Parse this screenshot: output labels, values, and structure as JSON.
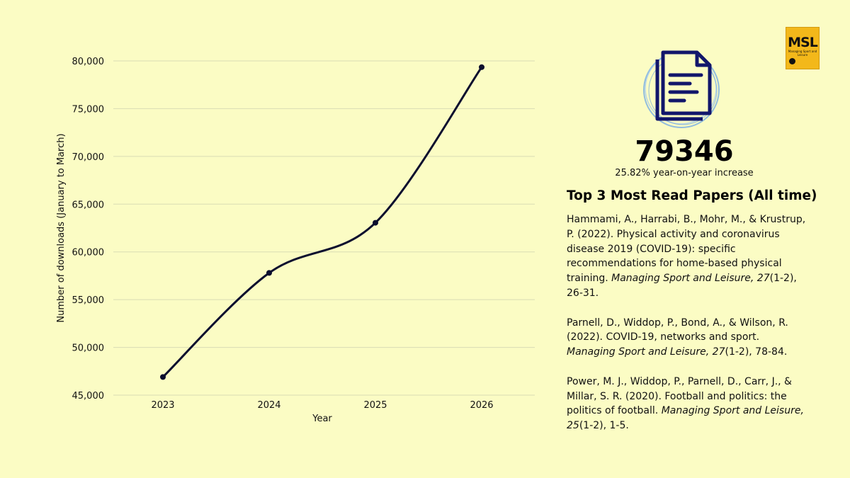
{
  "chart_data": {
    "type": "line",
    "x": [
      "2023",
      "2024",
      "2025",
      "2026"
    ],
    "series": [
      {
        "values": [
          46900,
          57800,
          63050,
          79346
        ]
      }
    ],
    "xlabel": "Year",
    "ylabel": "Number of downloads (January to March)",
    "ylim": [
      45000,
      80000
    ],
    "yticks": [
      "45,000",
      "50,000",
      "55,000",
      "60,000",
      "65,000",
      "70,000",
      "75,000",
      "80,000"
    ],
    "ytick_values": [
      45000,
      50000,
      55000,
      60000,
      65000,
      70000,
      75000,
      80000
    ],
    "grid": true,
    "line_color": "#0b0e2e"
  },
  "logo": {
    "brand": "MSL",
    "subtitle": "Managing Sport and Leisure",
    "color": "#f3b81a"
  },
  "icon": "document-icon",
  "stats": {
    "downloads": "79346",
    "increase": "25.82% year-on-year increase"
  },
  "papers_title": "Top 3 Most Read Papers (All time)",
  "papers": [
    {
      "pre": "Hammami, A., Harrabi, B., Mohr, M., & Krustrup, P. (2022). Physical activity and coronavirus disease 2019 (COVID-19): specific recommendations for home-based physical training. ",
      "journal": "Managing Sport and Leisure, 27",
      "post": "(1-2), 26-31."
    },
    {
      "pre": "Parnell, D., Widdop, P., Bond, A., & Wilson, R. (2022). COVID-19, networks and sport. ",
      "journal": "Managing Sport and Leisure, 27",
      "post": "(1-2), 78-84."
    },
    {
      "pre": "Power, M. J., Widdop, P., Parnell, D., Carr, J., & Millar, S. R. (2020). Football and politics: the politics of football. ",
      "journal": "Managing Sport and Leisure, 25",
      "post": "(1-2), 1-5."
    }
  ]
}
